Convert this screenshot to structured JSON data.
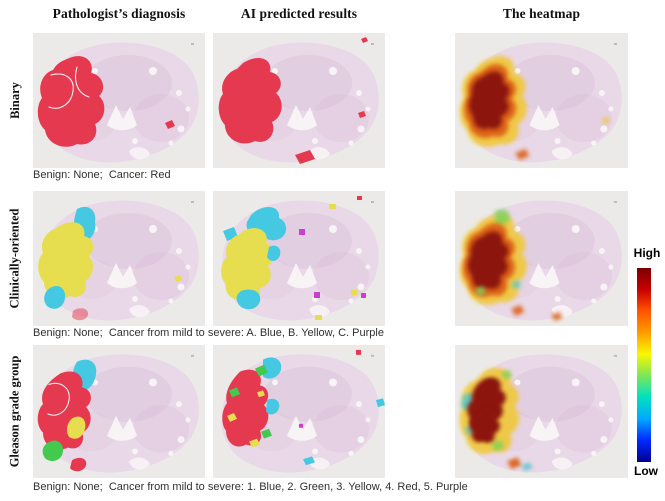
{
  "figure": {
    "columns": [
      {
        "id": "pathologist",
        "label": "Pathologist’s diagnosis"
      },
      {
        "id": "ai",
        "label": "AI predicted results"
      },
      {
        "id": "heatmap",
        "label": "The heatmap"
      }
    ],
    "rows": [
      {
        "id": "binary",
        "label": "Binary",
        "caption": "Benign: None;  Cancer: Red"
      },
      {
        "id": "clinical",
        "label": "Clinically-oriented",
        "caption": "Benign: None;  Cancer from mild to severe: A. Blue, B. Yellow, C. Purple"
      },
      {
        "id": "gleason",
        "label": "Gleason grade group",
        "caption": "Benign: None;  Cancer from mild to severe: 1. Blue, 2. Green, 3. Yellow, 4. Red, 5. Purple"
      }
    ],
    "panels": [
      {
        "id": "binary-pathologist",
        "row": "Binary",
        "column": "Pathologist’s diagnosis",
        "overlay_colors": [
          "red"
        ]
      },
      {
        "id": "binary-ai",
        "row": "Binary",
        "column": "AI predicted results",
        "overlay_colors": [
          "red"
        ]
      },
      {
        "id": "binary-heatmap",
        "row": "Binary",
        "column": "The heatmap",
        "overlay_colors": [
          "heat_dark",
          "heat_orange",
          "heat_yellow"
        ]
      },
      {
        "id": "clinical-pathologist",
        "row": "Clinically-oriented",
        "column": "Pathologist’s diagnosis",
        "overlay_colors": [
          "yellow",
          "cyan"
        ]
      },
      {
        "id": "clinical-ai",
        "row": "Clinically-oriented",
        "column": "AI predicted results",
        "overlay_colors": [
          "yellow",
          "cyan",
          "purple"
        ]
      },
      {
        "id": "clinical-heatmap",
        "row": "Clinically-oriented",
        "column": "The heatmap",
        "overlay_colors": [
          "heat_dark",
          "heat_orange",
          "heat_yellow",
          "heat_green"
        ]
      },
      {
        "id": "gleason-pathologist",
        "row": "Gleason grade group",
        "column": "Pathologist’s diagnosis",
        "overlay_colors": [
          "red",
          "cyan",
          "yellow",
          "green"
        ]
      },
      {
        "id": "gleason-ai",
        "row": "Gleason grade group",
        "column": "AI predicted results",
        "overlay_colors": [
          "red",
          "cyan",
          "yellow",
          "green",
          "purple"
        ]
      },
      {
        "id": "gleason-heatmap",
        "row": "Gleason grade group",
        "column": "The heatmap",
        "overlay_colors": [
          "heat_dark",
          "heat_orange",
          "heat_yellow",
          "heat_green",
          "heat_cyan"
        ]
      }
    ],
    "colorbar": {
      "high_label": "High",
      "low_label": "Low",
      "gradient": [
        "#7a0000",
        "#c80000",
        "#ff5400",
        "#ff9c00",
        "#f8f800",
        "#7ce65a",
        "#00e0c0",
        "#00a8ff",
        "#0028ff",
        "#000090"
      ]
    }
  },
  "colors": {
    "panel_bg": "#eceae9",
    "tissue": "#e9d8e7",
    "tissue_texture": "#d8bcd6",
    "tissue_light": "#f8f4f6",
    "red": "#e4394e",
    "yellow": "#e6de4e",
    "cyan": "#45c8e2",
    "green": "#44c94f",
    "purple": "#cb3fd0",
    "heat_dark": "#8c150c",
    "heat_orange": "#dd5f12",
    "heat_yellow": "#f0c838",
    "heat_green": "#7ed25a",
    "heat_cyan": "#4fc8cf",
    "white_line": "#f7eef2"
  }
}
